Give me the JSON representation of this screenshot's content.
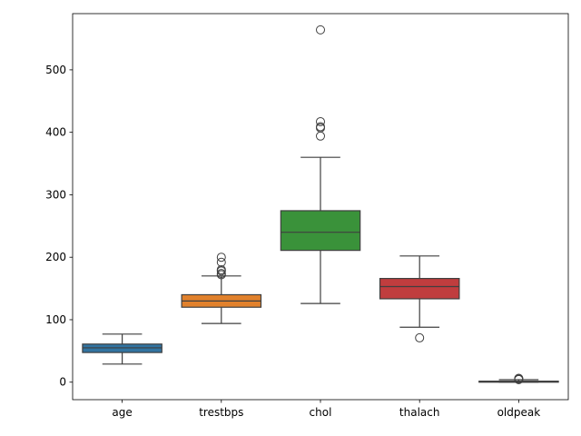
{
  "chart_data": {
    "type": "boxplot",
    "title": "",
    "xlabel": "",
    "ylabel": "",
    "ylim": [
      -28,
      590
    ],
    "yticks": [
      0,
      100,
      200,
      300,
      400,
      500
    ],
    "grid": false,
    "legend": "none",
    "categories": [
      "age",
      "trestbps",
      "chol",
      "thalach",
      "oldpeak"
    ],
    "series": [
      {
        "category": "age",
        "color": "#3274a1",
        "whisker_low": 29,
        "q1": 47.5,
        "median": 55,
        "q3": 61,
        "whisker_high": 77,
        "outliers": []
      },
      {
        "category": "trestbps",
        "color": "#e1812c",
        "whisker_low": 94,
        "q1": 120,
        "median": 130,
        "q3": 140,
        "whisker_high": 170,
        "outliers": [
          172,
          174,
          178,
          180,
          192,
          200
        ]
      },
      {
        "category": "chol",
        "color": "#3a923a",
        "whisker_low": 126,
        "q1": 211,
        "median": 240,
        "q3": 274.5,
        "whisker_high": 360,
        "outliers": [
          394,
          407,
          409,
          417,
          564
        ]
      },
      {
        "category": "thalach",
        "color": "#c03d3e",
        "whisker_low": 88,
        "q1": 133.5,
        "median": 153,
        "q3": 166,
        "whisker_high": 202,
        "outliers": [
          71
        ]
      },
      {
        "category": "oldpeak",
        "color": "#9372b2",
        "whisker_low": 0,
        "q1": 0,
        "median": 0.8,
        "q3": 1.6,
        "whisker_high": 4,
        "outliers": [
          4.2,
          4.4,
          5.6,
          6.2
        ]
      }
    ]
  }
}
